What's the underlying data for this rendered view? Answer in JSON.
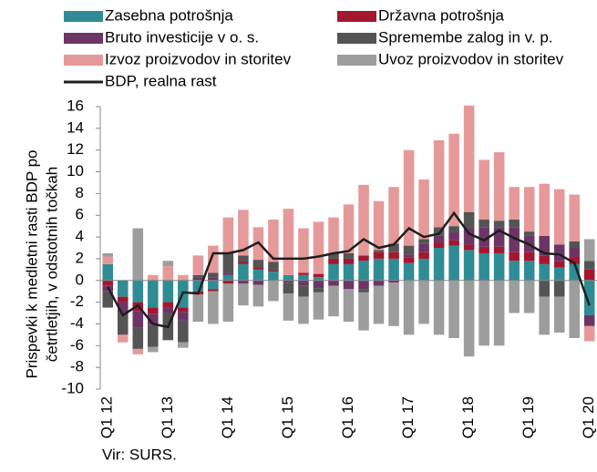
{
  "chart_data": {
    "type": "bar",
    "stacked": true,
    "categories": [
      "Q1 12",
      null,
      null,
      null,
      "Q1 13",
      null,
      null,
      null,
      "Q1 14",
      null,
      null,
      null,
      "Q1 15",
      null,
      null,
      null,
      "Q1 16",
      null,
      null,
      null,
      "Q1 17",
      null,
      null,
      null,
      "Q1 18",
      null,
      null,
      null,
      "Q1 19",
      null,
      null,
      null,
      "Q1 20"
    ],
    "series": [
      {
        "name": "Zasebna potrošnja",
        "color": "#2f8c94",
        "values": [
          1.5,
          -1.5,
          -2,
          -2.5,
          -2,
          -2.5,
          -1,
          -0.8,
          0.5,
          1.5,
          1,
          0.8,
          0.5,
          0.5,
          0.3,
          1.5,
          1.5,
          1.8,
          2,
          2,
          1.6,
          2,
          3,
          3.2,
          2.8,
          2.5,
          2.5,
          1.8,
          1.8,
          1.5,
          1.2,
          1.5,
          -3.2
        ]
      },
      {
        "name": "Državna potrošnja",
        "color": "#a3172f",
        "values": [
          -0.5,
          -0.5,
          -0.8,
          -0.6,
          -0.5,
          -0.4,
          -0.3,
          -0.2,
          -0.3,
          0.2,
          0.2,
          0.1,
          0,
          0.2,
          0.3,
          0.5,
          0.5,
          0.5,
          0.6,
          0.6,
          0.5,
          0.6,
          0.5,
          0.5,
          0.5,
          0.6,
          0.6,
          0.8,
          0.8,
          0.8,
          0.6,
          0.7,
          1
        ]
      },
      {
        "name": "Bruto investicije v o. s.",
        "color": "#6c3566",
        "values": [
          -0.5,
          -1,
          -1.5,
          -1,
          -0.5,
          -0.8,
          0.3,
          0.3,
          0.2,
          -0.3,
          -0.4,
          0,
          -0.2,
          -0.5,
          -0.7,
          -0.5,
          -0.8,
          -0.8,
          -0.5,
          -0.2,
          0.3,
          0.8,
          0.6,
          0.8,
          1.5,
          1.8,
          1.8,
          2.3,
          1.5,
          1.8,
          1.5,
          0.8,
          -1
        ]
      },
      {
        "name": "Spremembe zalog in v. p.",
        "color": "#545454",
        "values": [
          -1.5,
          -2,
          -2,
          -2,
          -2.5,
          -2,
          0.2,
          0.4,
          1.8,
          0.6,
          0.7,
          0.8,
          -1,
          -1,
          -0.4,
          0.5,
          0.5,
          -0.3,
          0.2,
          0.8,
          0.8,
          0.4,
          0.8,
          0.5,
          1.5,
          0.7,
          0.6,
          0.7,
          0.4,
          -1.5,
          -1.5,
          0.6,
          0.8
        ]
      },
      {
        "name": "Izvoz proizvodov in storitev",
        "color": "#e6999a",
        "values": [
          0.7,
          -0.7,
          -0.5,
          0.5,
          1.3,
          0.5,
          1.8,
          2.5,
          3.3,
          4.2,
          3,
          3.9,
          6.1,
          4.1,
          4.8,
          3.3,
          4.5,
          6.5,
          4.5,
          5.2,
          8.8,
          5.5,
          8,
          8.5,
          9.8,
          5.5,
          6.3,
          3,
          4.1,
          4.8,
          5.1,
          4.3,
          -1.4
        ]
      },
      {
        "name": "Uvoz proizvodov in storitev",
        "color": "#9d9d9d",
        "values": [
          0.3,
          0,
          4.8,
          -0.5,
          0.5,
          -0.5,
          -2.5,
          -3,
          -3.5,
          -2,
          -2,
          -1.9,
          -2.5,
          -2.5,
          -2.5,
          -2.8,
          -3,
          -3.5,
          -3.5,
          -4,
          -5,
          -4,
          -5,
          -5.3,
          -7,
          -6,
          -6,
          -3,
          -3,
          -3.5,
          -3.3,
          -5.3,
          2
        ]
      }
    ],
    "line": {
      "name": "BDP, realna rast",
      "color": "#1e1e1e",
      "values": [
        -0.6,
        -3.2,
        -2.3,
        -4,
        -4.3,
        -1.1,
        -1.2,
        2.5,
        2.5,
        2.8,
        3.5,
        2,
        2,
        2,
        2.2,
        2.5,
        2.7,
        3.8,
        3,
        3.3,
        4.8,
        4,
        4.3,
        6.2,
        4.3,
        3.7,
        4.6,
        3.9,
        3.3,
        2.5,
        2.4,
        1.6,
        -2.3
      ]
    },
    "ylabel": [
      "Prispevki k medletni rasti BDP po",
      "četrtletjih, v odstotnih točkah"
    ],
    "source": "Vir: SURS.",
    "ylim": [
      -10,
      16
    ],
    "yticks": [
      -10,
      -8,
      -6,
      -4,
      -2,
      0,
      2,
      4,
      6,
      8,
      10,
      12,
      14,
      16
    ]
  }
}
